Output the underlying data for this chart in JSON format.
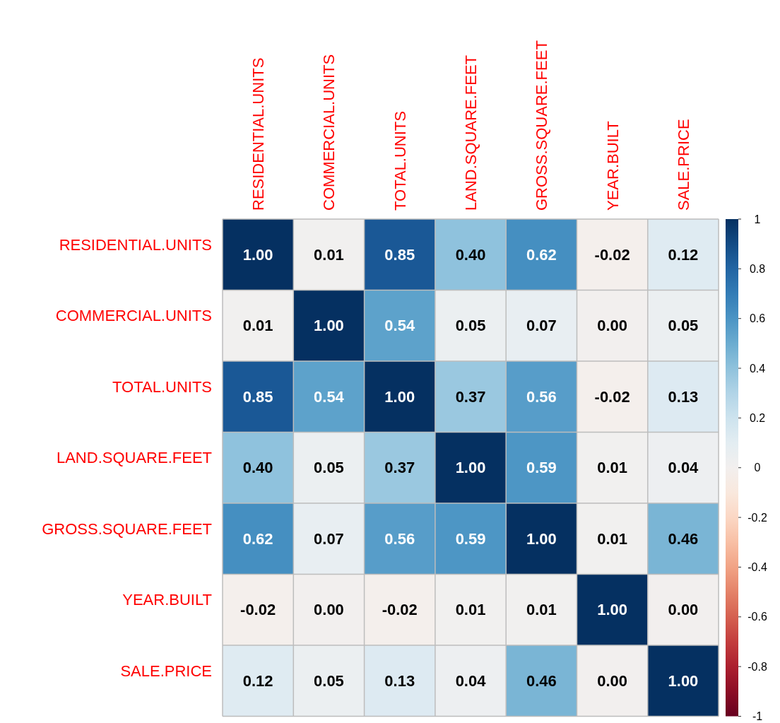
{
  "chart_data": {
    "type": "heatmap",
    "categories": [
      "RESIDENTIAL.UNITS",
      "COMMERCIAL.UNITS",
      "TOTAL.UNITS",
      "LAND.SQUARE.FEET",
      "GROSS.SQUARE.FEET",
      "YEAR.BUILT",
      "SALE.PRICE"
    ],
    "y_categories": [
      "RESIDENTIAL.UNITS",
      "COMMERCIAL.UNITS",
      "TOTAL.UNITS",
      "LAND.SQUARE.FEET",
      "GROSS.SQUARE.FEET",
      "YEAR.BUILT",
      "SALE.PRICE"
    ],
    "cells": [
      [
        1.0,
        0.01,
        0.85,
        0.4,
        0.62,
        -0.02,
        0.12
      ],
      [
        0.01,
        1.0,
        0.54,
        0.05,
        0.07,
        0.0,
        0.05
      ],
      [
        0.85,
        0.54,
        1.0,
        0.37,
        0.56,
        -0.02,
        0.13
      ],
      [
        0.4,
        0.05,
        0.37,
        1.0,
        0.59,
        0.01,
        0.04
      ],
      [
        0.62,
        0.07,
        0.56,
        0.59,
        1.0,
        0.01,
        0.46
      ],
      [
        -0.02,
        0.0,
        -0.02,
        0.01,
        0.01,
        1.0,
        0.0
      ],
      [
        0.12,
        0.05,
        0.13,
        0.04,
        0.46,
        0.0,
        1.0
      ]
    ],
    "cell_labels": [
      [
        "1.00",
        "0.01",
        "0.85",
        "0.40",
        "0.62",
        "-0.02",
        "0.12"
      ],
      [
        "0.01",
        "1.00",
        "0.54",
        "0.05",
        "0.07",
        "0.00",
        "0.05"
      ],
      [
        "0.85",
        "0.54",
        "1.00",
        "0.37",
        "0.56",
        "-0.02",
        "0.13"
      ],
      [
        "0.40",
        "0.05",
        "0.37",
        "1.00",
        "0.59",
        "0.01",
        "0.04"
      ],
      [
        "0.62",
        "0.07",
        "0.56",
        "0.59",
        "1.00",
        "0.01",
        "0.46"
      ],
      [
        "-0.02",
        "0.00",
        "-0.02",
        "0.01",
        "0.01",
        "1.00",
        "0.00"
      ],
      [
        "0.12",
        "0.05",
        "0.13",
        "0.04",
        "0.46",
        "0.00",
        "1.00"
      ]
    ],
    "clim": [
      -1,
      1
    ],
    "cticks": [
      -1,
      -0.8,
      -0.6,
      -0.4,
      -0.2,
      0,
      0.2,
      0.4,
      0.6,
      0.8,
      1
    ]
  }
}
